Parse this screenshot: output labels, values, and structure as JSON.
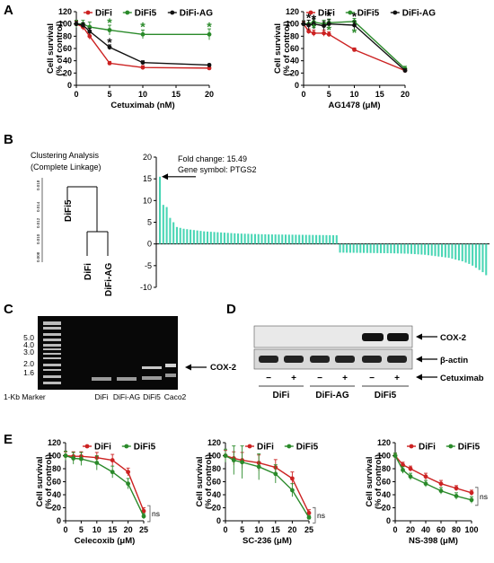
{
  "panels": {
    "a": "A",
    "b": "B",
    "c": "C",
    "d": "D",
    "e": "E"
  },
  "colors": {
    "difi": "#cc2222",
    "difi5": "#2a8a2a",
    "difiag": "#111111",
    "bar": "#4ad6b5"
  },
  "chart_data": [
    {
      "id": "a1",
      "type": "line",
      "xlabel": "Cetuximab (nM)",
      "ylabel": [
        "Cell survival",
        "(% of control)"
      ],
      "xlim": [
        0,
        20
      ],
      "ylim": [
        0,
        120
      ],
      "xticks": [
        0,
        5,
        10,
        15,
        20
      ],
      "yticks": [
        0,
        20,
        40,
        60,
        80,
        100,
        120
      ],
      "legend_labels": [
        "DiFi",
        "DiFi5",
        "DiFi-AG"
      ],
      "series": [
        {
          "name": "DiFi",
          "color": "#cc2222",
          "x": [
            0,
            1,
            2,
            5,
            10,
            20
          ],
          "y": [
            100,
            95,
            80,
            36,
            29,
            28
          ],
          "err": [
            5,
            5,
            5,
            3,
            3,
            2
          ]
        },
        {
          "name": "DiFi5",
          "color": "#2a8a2a",
          "x": [
            0,
            1,
            2,
            5,
            10,
            20
          ],
          "y": [
            100,
            100,
            95,
            90,
            83,
            83
          ],
          "err": [
            6,
            6,
            8,
            8,
            7,
            9
          ]
        },
        {
          "name": "DiFi-AG",
          "color": "#111111",
          "x": [
            0,
            1,
            2,
            5,
            10,
            20
          ],
          "y": [
            100,
            98,
            88,
            62,
            37,
            33
          ],
          "err": [
            4,
            4,
            5,
            4,
            3,
            2
          ]
        }
      ],
      "annotations": [
        {
          "text": "*",
          "x": 5,
          "y": 104,
          "color": "#2a8a2a"
        },
        {
          "text": "*",
          "x": 10,
          "y": 97,
          "color": "#2a8a2a"
        },
        {
          "text": "*",
          "x": 20,
          "y": 97,
          "color": "#2a8a2a"
        },
        {
          "text": "*",
          "x": 5,
          "y": 72,
          "color": "#111111"
        }
      ]
    },
    {
      "id": "a2",
      "type": "line",
      "xlabel": "AG1478 (μM)",
      "ylabel": [
        "Cell survival",
        "(% of control)"
      ],
      "xlim": [
        0,
        20
      ],
      "ylim": [
        0,
        120
      ],
      "xticks": [
        0,
        5,
        10,
        15,
        20
      ],
      "yticks": [
        0,
        20,
        40,
        60,
        80,
        100,
        120
      ],
      "legend_labels": [
        "DiFi",
        "DiFi5",
        "DiFi-AG"
      ],
      "series": [
        {
          "name": "DiFi",
          "color": "#cc2222",
          "x": [
            0,
            1,
            2,
            4,
            5,
            10,
            20
          ],
          "y": [
            100,
            88,
            85,
            85,
            83,
            58,
            24
          ],
          "err": [
            4,
            4,
            5,
            5,
            4,
            3,
            3
          ]
        },
        {
          "name": "DiFi5",
          "color": "#2a8a2a",
          "x": [
            0,
            1,
            2,
            4,
            5,
            10,
            20
          ],
          "y": [
            100,
            100,
            103,
            100,
            102,
            104,
            27
          ],
          "err": [
            5,
            6,
            6,
            6,
            6,
            5,
            4
          ]
        },
        {
          "name": "DiFi-AG",
          "color": "#111111",
          "x": [
            0,
            1,
            2,
            4,
            5,
            10,
            20
          ],
          "y": [
            100,
            98,
            100,
            97,
            100,
            98,
            24
          ],
          "err": [
            5,
            8,
            8,
            7,
            7,
            6,
            3
          ]
        }
      ],
      "annotations": [
        {
          "text": "*",
          "x": 1,
          "y": 112,
          "color": "#111111"
        },
        {
          "text": "*",
          "x": 2,
          "y": 110,
          "color": "#111111"
        },
        {
          "text": "*",
          "x": 5,
          "y": 115,
          "color": "#111111"
        },
        {
          "text": "*",
          "x": 10,
          "y": 114,
          "color": "#111111"
        },
        {
          "text": "*",
          "x": 2,
          "y": 95,
          "color": "#2a8a2a"
        },
        {
          "text": "*",
          "x": 5,
          "y": 92,
          "color": "#2a8a2a"
        },
        {
          "text": "*",
          "x": 10,
          "y": 88,
          "color": "#2a8a2a"
        }
      ]
    },
    {
      "id": "b",
      "type": "bar",
      "ylim": [
        -10,
        20
      ],
      "yticks": [
        -10,
        -5,
        0,
        5,
        10,
        15,
        20
      ],
      "annotation": [
        "Fold change: 15.49",
        "Gene symbol: PTGS2"
      ],
      "up_values": [
        15.49,
        9,
        8.5,
        6,
        5,
        3.9,
        3.7,
        3.5,
        3.4,
        3.3,
        3.2,
        3.1,
        3.0,
        2.9,
        2.85,
        2.8,
        2.75,
        2.7,
        2.65,
        2.6,
        2.55,
        2.5,
        2.45,
        2.4,
        2.38,
        2.35,
        2.33,
        2.3,
        2.28,
        2.26,
        2.24,
        2.22,
        2.2,
        2.19,
        2.18,
        2.17,
        2.16,
        2.15,
        2.14,
        2.13,
        2.12,
        2.11,
        2.1,
        2.09,
        2.08,
        2.07,
        2.06,
        2.05,
        2.04,
        2.03,
        2.02,
        2.01,
        2.0
      ],
      "down_values": [
        -2.0,
        -2.01,
        -2.02,
        -2.03,
        -2.04,
        -2.05,
        -2.06,
        -2.07,
        -2.08,
        -2.09,
        -2.1,
        -2.11,
        -2.12,
        -2.13,
        -2.14,
        -2.15,
        -2.17,
        -2.19,
        -2.21,
        -2.23,
        -2.25,
        -2.3,
        -2.35,
        -2.4,
        -2.45,
        -2.5,
        -2.6,
        -2.7,
        -2.8,
        -2.9,
        -3.0,
        -3.1,
        -3.2,
        -3.4,
        -3.6,
        -3.8,
        -4.0,
        -4.3,
        -4.6,
        -5.0,
        -5.5,
        -6.0,
        -6.5,
        -7.2
      ]
    },
    {
      "id": "e1",
      "type": "line",
      "xlabel": "Celecoxib (μM)",
      "ylabel": [
        "Cell survival",
        "(% of control)"
      ],
      "xlim": [
        0,
        25
      ],
      "ylim": [
        0,
        120
      ],
      "xticks": [
        0,
        5,
        10,
        15,
        20,
        25
      ],
      "yticks": [
        0,
        20,
        40,
        60,
        80,
        100,
        120
      ],
      "legend_labels": [
        "DiFi",
        "DiFi5"
      ],
      "side_note": "ns",
      "series": [
        {
          "name": "DiFi",
          "color": "#cc2222",
          "x": [
            0,
            2.5,
            5,
            10,
            15,
            20,
            25
          ],
          "y": [
            100,
            99,
            99,
            97,
            93,
            75,
            15
          ],
          "err": [
            6,
            7,
            7,
            8,
            9,
            6,
            5
          ]
        },
        {
          "name": "DiFi5",
          "color": "#2a8a2a",
          "x": [
            0,
            2.5,
            5,
            10,
            15,
            20,
            25
          ],
          "y": [
            100,
            96,
            95,
            89,
            75,
            57,
            7
          ],
          "err": [
            7,
            9,
            10,
            11,
            9,
            8,
            4
          ]
        }
      ]
    },
    {
      "id": "e2",
      "type": "line",
      "xlabel": "SC-236 (μM)",
      "ylabel": [
        "Cell survival",
        "(% of control)"
      ],
      "xlim": [
        0,
        25
      ],
      "ylim": [
        0,
        120
      ],
      "xticks": [
        0,
        5,
        10,
        15,
        20,
        25
      ],
      "yticks": [
        0,
        20,
        40,
        60,
        80,
        100,
        120
      ],
      "legend_labels": [
        "DiFi",
        "DiFi5"
      ],
      "side_note": "ns",
      "series": [
        {
          "name": "DiFi",
          "color": "#cc2222",
          "x": [
            0,
            2.5,
            5,
            10,
            15,
            20,
            25
          ],
          "y": [
            100,
            96,
            93,
            89,
            82,
            65,
            12
          ],
          "err": [
            8,
            10,
            12,
            12,
            12,
            10,
            5
          ]
        },
        {
          "name": "DiFi5",
          "color": "#2a8a2a",
          "x": [
            0,
            2.5,
            5,
            10,
            15,
            20,
            25
          ],
          "y": [
            100,
            93,
            90,
            83,
            72,
            47,
            5
          ],
          "err": [
            10,
            22,
            25,
            20,
            14,
            10,
            3
          ]
        }
      ]
    },
    {
      "id": "e3",
      "type": "line",
      "xlabel": "NS-398 (μM)",
      "ylabel": [
        "Cell survival",
        "(% of control)"
      ],
      "xlim": [
        0,
        100
      ],
      "ylim": [
        0,
        120
      ],
      "xticks": [
        0,
        20,
        40,
        60,
        80,
        100
      ],
      "yticks": [
        0,
        20,
        40,
        60,
        80,
        100,
        120
      ],
      "legend_labels": [
        "DiFi",
        "DiFi5"
      ],
      "side_note": "ns",
      "series": [
        {
          "name": "DiFi",
          "color": "#cc2222",
          "x": [
            0,
            10,
            20,
            40,
            60,
            80,
            100
          ],
          "y": [
            100,
            86,
            80,
            68,
            57,
            50,
            43
          ],
          "err": [
            4,
            4,
            4,
            5,
            5,
            4,
            4
          ]
        },
        {
          "name": "DiFi5",
          "color": "#2a8a2a",
          "x": [
            0,
            10,
            20,
            40,
            60,
            80,
            100
          ],
          "y": [
            100,
            78,
            68,
            57,
            46,
            38,
            32
          ],
          "err": [
            4,
            5,
            5,
            5,
            5,
            5,
            5
          ]
        }
      ]
    }
  ],
  "dendrogram": {
    "title": [
      "Clustering Analysis",
      "(Complete Linkage)"
    ],
    "scale_labels": [
      "0.018",
      "0.014",
      "0.012",
      "0.010",
      "0.008"
    ],
    "leaves": [
      "DiFi5",
      "DiFi",
      "DiFi-AG"
    ]
  },
  "gel": {
    "marker_sizes": [
      "5.0",
      "4.0",
      "3.0",
      "2.0",
      "1.6"
    ],
    "lanes": [
      "1-Kb Marker",
      "DiFi",
      "DiFi-AG",
      "DiFi5",
      "Caco2"
    ],
    "band_label": "COX-2"
  },
  "western": {
    "rows": [
      "COX-2",
      "β-actin"
    ],
    "treatment_label": "Cetuximab",
    "signs": [
      "−",
      "+",
      "−",
      "+",
      "−",
      "+"
    ],
    "groups": [
      "DiFi",
      "DiFi-AG",
      "DiFi5"
    ]
  }
}
